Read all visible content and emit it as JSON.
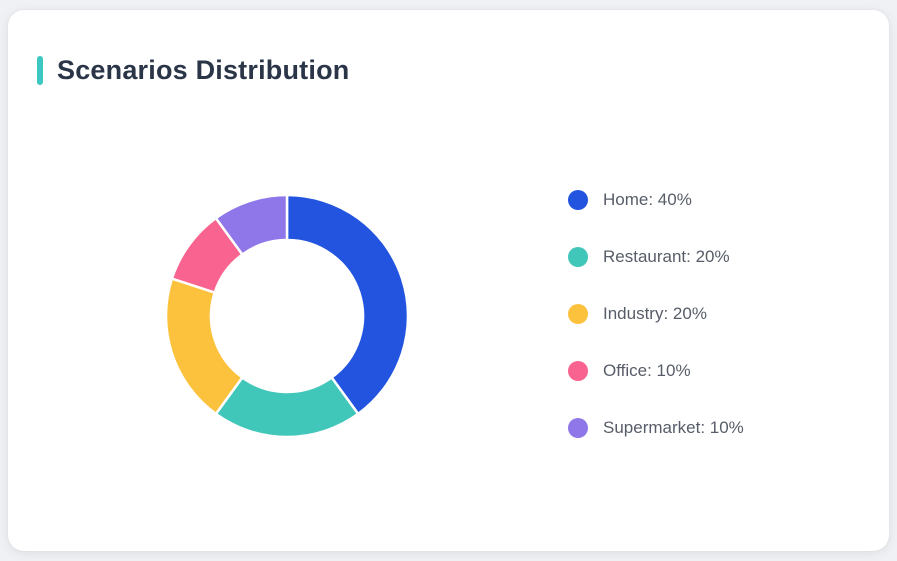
{
  "theme": {
    "page_background": "#f0f1f4",
    "card_background": "#ffffff",
    "accent_color": "#3cc7c2",
    "title_color": "#2a3547",
    "legend_text_color": "#575d68"
  },
  "card": {
    "title": "Scenarios Distribution"
  },
  "chart_data": {
    "type": "pie",
    "variant": "donut",
    "title": "Scenarios Distribution",
    "categories": [
      "Home",
      "Restaurant",
      "Industry",
      "Office",
      "Supermarket"
    ],
    "values": [
      40,
      20,
      20,
      10,
      10
    ],
    "unit": "%",
    "colors": [
      "#2254e0",
      "#41c6ba",
      "#fcc23d",
      "#f9638f",
      "#9077e9"
    ],
    "start_angle_deg": 0,
    "direction": "clockwise",
    "inner_radius_ratio": 0.63,
    "slice_gap_color": "#ffffff",
    "legend_position": "right",
    "legend": [
      {
        "label": "Home: 40%"
      },
      {
        "label": "Restaurant: 20%"
      },
      {
        "label": "Industry: 20%"
      },
      {
        "label": "Office: 10%"
      },
      {
        "label": "Supermarket: 10%"
      }
    ]
  }
}
